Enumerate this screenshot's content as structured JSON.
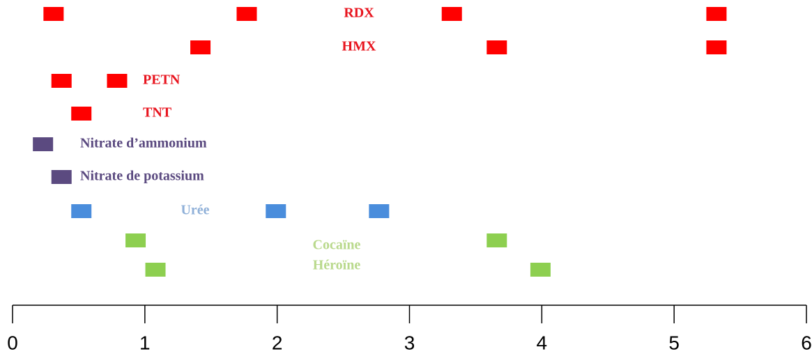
{
  "chart_data": {
    "type": "strip",
    "series": [
      {
        "name": "RDX",
        "color": "#ff0000",
        "label_color": "#e8141e",
        "values": [
          0.31,
          1.77,
          3.32,
          5.32
        ]
      },
      {
        "name": "HMX",
        "color": "#ff0000",
        "label_color": "#e8141e",
        "values": [
          1.42,
          3.66,
          5.32
        ]
      },
      {
        "name": "PETN",
        "color": "#ff0000",
        "label_color": "#e8141e",
        "values": [
          0.37,
          0.79
        ]
      },
      {
        "name": "TNT",
        "color": "#ff0000",
        "label_color": "#e8141e",
        "values": [
          0.52
        ]
      },
      {
        "name": "Nitrate d’ammonium",
        "color": "#5b4a80",
        "label_color": "#5b4a80",
        "values": [
          0.23
        ]
      },
      {
        "name": "Nitrate de potassium",
        "color": "#5b4a80",
        "label_color": "#5b4a80",
        "values": [
          0.37
        ]
      },
      {
        "name": "Urée",
        "color": "#4a8ddc",
        "label_color": "#8fb0d8",
        "values": [
          0.52,
          1.99,
          2.77
        ]
      },
      {
        "name": "Cocaïne",
        "color": "#8dcf50",
        "label_color": "#b9d98c",
        "values": [
          0.93,
          3.66
        ]
      },
      {
        "name": "Héroïne",
        "color": "#8dcf50",
        "label_color": "#b9d98c",
        "values": [
          1.08,
          3.99
        ]
      }
    ],
    "xlim": [
      0,
      6
    ],
    "xticks": [
      0,
      1,
      2,
      3,
      4,
      5,
      6
    ]
  }
}
